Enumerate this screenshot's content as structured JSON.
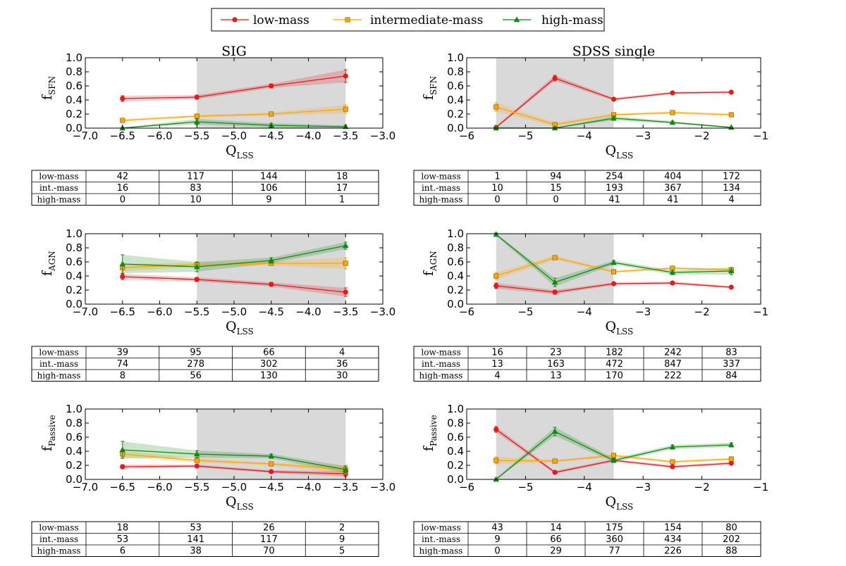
{
  "colors": {
    "low": "#e41a1c",
    "inter": "#ffa500",
    "high": "#118811",
    "shade": "#d9d9d9"
  },
  "legend": [
    {
      "key": "low",
      "label": "low-mass",
      "marker": "circle"
    },
    {
      "key": "inter",
      "label": "intermediate-mass",
      "marker": "square"
    },
    {
      "key": "high",
      "label": "high-mass",
      "marker": "triangle"
    }
  ],
  "chart_data": [
    {
      "type": "line",
      "id": "sig-sfn",
      "title": "SIG",
      "ylabel_main": "f",
      "ylabel_sub": "SFN",
      "xlabel_main": "Q",
      "xlabel_sub": "LSS",
      "xlim": [
        -7.0,
        -3.0
      ],
      "ylim": [
        0.0,
        1.0
      ],
      "xticks": [
        -7.0,
        -6.5,
        -6.0,
        -5.5,
        -5.0,
        -4.5,
        -4.0,
        -3.5,
        -3.0
      ],
      "xtick_labels": [
        "−7.0",
        "−6.5",
        "−6.0",
        "−5.5",
        "−5.0",
        "−4.5",
        "−4.0",
        "−3.5",
        "−3.0"
      ],
      "yticks": [
        0.0,
        0.2,
        0.4,
        0.6,
        0.8,
        1.0
      ],
      "ytick_labels": [
        "0.0",
        "0.2",
        "0.4",
        "0.6",
        "0.8",
        "1.0"
      ],
      "shade": [
        -5.5,
        -3.5
      ],
      "x": [
        -6.5,
        -5.5,
        -4.5,
        -3.5
      ],
      "series": [
        {
          "key": "low",
          "values": [
            0.42,
            0.44,
            0.6,
            0.74
          ],
          "err": [
            0.04,
            0.03,
            0.03,
            0.09
          ]
        },
        {
          "key": "inter",
          "values": [
            0.11,
            0.17,
            0.2,
            0.27
          ],
          "err": [
            0.02,
            0.02,
            0.02,
            0.06
          ]
        },
        {
          "key": "high",
          "values": [
            0.0,
            0.09,
            0.04,
            0.02
          ],
          "err": [
            0.01,
            0.04,
            0.03,
            0.02
          ]
        }
      ],
      "table": {
        "rows": [
          {
            "label": "low-mass",
            "values": [
              "42",
              "117",
              "144",
              "18"
            ]
          },
          {
            "label": "int.-mass",
            "values": [
              "16",
              "83",
              "106",
              "17"
            ]
          },
          {
            "label": "high-mass",
            "values": [
              "0",
              "10",
              "9",
              "1"
            ]
          }
        ]
      }
    },
    {
      "type": "line",
      "id": "sdss-sfn",
      "title": "SDSS single",
      "ylabel_main": "f",
      "ylabel_sub": "SFN",
      "xlabel_main": "Q",
      "xlabel_sub": "LSS",
      "xlim": [
        -6,
        -1
      ],
      "ylim": [
        0.0,
        1.0
      ],
      "xticks": [
        -6,
        -5,
        -4,
        -3,
        -2,
        -1
      ],
      "xtick_labels": [
        "−6",
        "−5",
        "−4",
        "−3",
        "−2",
        "−1"
      ],
      "yticks": [
        0.0,
        0.2,
        0.4,
        0.6,
        0.8,
        1.0
      ],
      "ytick_labels": [
        "0.0",
        "0.2",
        "0.4",
        "0.6",
        "0.8",
        "1.0"
      ],
      "shade": [
        -5.5,
        -3.5
      ],
      "x": [
        -5.5,
        -4.5,
        -3.5,
        -2.5,
        -1.5
      ],
      "series": [
        {
          "key": "low",
          "values": [
            0.01,
            0.71,
            0.41,
            0.5,
            0.51
          ],
          "err": [
            0.02,
            0.04,
            0.02,
            0.02,
            0.02
          ]
        },
        {
          "key": "inter",
          "values": [
            0.3,
            0.05,
            0.19,
            0.22,
            0.19
          ],
          "err": [
            0.06,
            0.03,
            0.02,
            0.02,
            0.02
          ]
        },
        {
          "key": "high",
          "values": [
            0.0,
            0.0,
            0.14,
            0.08,
            0.01
          ],
          "err": [
            0.02,
            0.01,
            0.03,
            0.02,
            0.01
          ]
        }
      ],
      "table": {
        "rows": [
          {
            "label": "low-mass",
            "values": [
              "1",
              "94",
              "254",
              "404",
              "172"
            ]
          },
          {
            "label": "int.-mass",
            "values": [
              "10",
              "15",
              "193",
              "367",
              "134"
            ]
          },
          {
            "label": "high-mass",
            "values": [
              "0",
              "0",
              "41",
              "41",
              "4"
            ]
          }
        ]
      }
    },
    {
      "type": "line",
      "id": "sig-agn",
      "title": "",
      "ylabel_main": "f",
      "ylabel_sub": "AGN",
      "xlabel_main": "Q",
      "xlabel_sub": "LSS",
      "xlim": [
        -7.0,
        -3.0
      ],
      "ylim": [
        0.0,
        1.0
      ],
      "xticks": [
        -7.0,
        -6.5,
        -6.0,
        -5.5,
        -5.0,
        -4.5,
        -4.0,
        -3.5,
        -3.0
      ],
      "xtick_labels": [
        "−7.0",
        "−6.5",
        "−6.0",
        "−5.5",
        "−5.0",
        "−4.5",
        "−4.0",
        "−3.5",
        "−3.0"
      ],
      "yticks": [
        0.0,
        0.2,
        0.4,
        0.6,
        0.8,
        1.0
      ],
      "ytick_labels": [
        "0.0",
        "0.2",
        "0.4",
        "0.6",
        "0.8",
        "1.0"
      ],
      "shade": [
        -5.5,
        -3.5
      ],
      "x": [
        -6.5,
        -5.5,
        -4.5,
        -3.5
      ],
      "series": [
        {
          "key": "low",
          "values": [
            0.39,
            0.35,
            0.28,
            0.17
          ],
          "err": [
            0.04,
            0.03,
            0.03,
            0.06
          ]
        },
        {
          "key": "inter",
          "values": [
            0.52,
            0.56,
            0.58,
            0.58
          ],
          "err": [
            0.05,
            0.03,
            0.03,
            0.08
          ]
        },
        {
          "key": "high",
          "values": [
            0.57,
            0.53,
            0.62,
            0.83
          ],
          "err": [
            0.13,
            0.07,
            0.04,
            0.05
          ]
        }
      ],
      "table": {
        "rows": [
          {
            "label": "low-mass",
            "values": [
              "39",
              "95",
              "66",
              "4"
            ]
          },
          {
            "label": "int.-mass",
            "values": [
              "74",
              "278",
              "302",
              "36"
            ]
          },
          {
            "label": "high-mass",
            "values": [
              "8",
              "56",
              "130",
              "30"
            ]
          }
        ]
      }
    },
    {
      "type": "line",
      "id": "sdss-agn",
      "title": "",
      "ylabel_main": "f",
      "ylabel_sub": "AGN",
      "xlabel_main": "Q",
      "xlabel_sub": "LSS",
      "xlim": [
        -6,
        -1
      ],
      "ylim": [
        0.0,
        1.0
      ],
      "xticks": [
        -6,
        -5,
        -4,
        -3,
        -2,
        -1
      ],
      "xtick_labels": [
        "−6",
        "−5",
        "−4",
        "−3",
        "−2",
        "−1"
      ],
      "yticks": [
        0.0,
        0.2,
        0.4,
        0.6,
        0.8,
        1.0
      ],
      "ytick_labels": [
        "0.0",
        "0.2",
        "0.4",
        "0.6",
        "0.8",
        "1.0"
      ],
      "shade": [
        -5.5,
        -3.5
      ],
      "x": [
        -5.5,
        -4.5,
        -3.5,
        -2.5,
        -1.5
      ],
      "series": [
        {
          "key": "low",
          "values": [
            0.26,
            0.17,
            0.29,
            0.3,
            0.24
          ],
          "err": [
            0.04,
            0.03,
            0.02,
            0.02,
            0.02
          ]
        },
        {
          "key": "inter",
          "values": [
            0.4,
            0.66,
            0.46,
            0.51,
            0.49
          ],
          "err": [
            0.05,
            0.03,
            0.02,
            0.02,
            0.02
          ]
        },
        {
          "key": "high",
          "values": [
            0.99,
            0.31,
            0.59,
            0.45,
            0.47
          ],
          "err": [
            0.02,
            0.06,
            0.03,
            0.03,
            0.05
          ]
        }
      ],
      "table": {
        "rows": [
          {
            "label": "low-mass",
            "values": [
              "16",
              "23",
              "182",
              "242",
              "83"
            ]
          },
          {
            "label": "int.-mass",
            "values": [
              "13",
              "163",
              "472",
              "847",
              "337"
            ]
          },
          {
            "label": "high-mass",
            "values": [
              "4",
              "13",
              "170",
              "222",
              "84"
            ]
          }
        ]
      }
    },
    {
      "type": "line",
      "id": "sig-passive",
      "title": "",
      "ylabel_main": "f",
      "ylabel_sub": "Passive",
      "xlabel_main": "Q",
      "xlabel_sub": "LSS",
      "xlim": [
        -7.0,
        -3.0
      ],
      "ylim": [
        0.0,
        1.0
      ],
      "xticks": [
        -7.0,
        -6.5,
        -6.0,
        -5.5,
        -5.0,
        -4.5,
        -4.0,
        -3.5,
        -3.0
      ],
      "xtick_labels": [
        "−7.0",
        "−6.5",
        "−6.0",
        "−5.5",
        "−5.0",
        "−4.5",
        "−4.0",
        "−3.5",
        "−3.0"
      ],
      "yticks": [
        0.0,
        0.2,
        0.4,
        0.6,
        0.8,
        1.0
      ],
      "ytick_labels": [
        "0.0",
        "0.2",
        "0.4",
        "0.6",
        "0.8",
        "1.0"
      ],
      "shade": [
        -5.5,
        -3.5
      ],
      "x": [
        -6.5,
        -5.5,
        -4.5,
        -3.5
      ],
      "series": [
        {
          "key": "low",
          "values": [
            0.18,
            0.19,
            0.11,
            0.08
          ],
          "err": [
            0.03,
            0.02,
            0.02,
            0.04
          ]
        },
        {
          "key": "inter",
          "values": [
            0.36,
            0.27,
            0.22,
            0.14
          ],
          "err": [
            0.05,
            0.03,
            0.02,
            0.06
          ]
        },
        {
          "key": "high",
          "values": [
            0.42,
            0.36,
            0.33,
            0.14
          ],
          "err": [
            0.12,
            0.05,
            0.03,
            0.05
          ]
        }
      ],
      "table": {
        "rows": [
          {
            "label": "low-mass",
            "values": [
              "18",
              "53",
              "26",
              "2"
            ]
          },
          {
            "label": "int.-mass",
            "values": [
              "53",
              "141",
              "117",
              "9"
            ]
          },
          {
            "label": "high-mass",
            "values": [
              "6",
              "38",
              "70",
              "5"
            ]
          }
        ]
      }
    },
    {
      "type": "line",
      "id": "sdss-passive",
      "title": "",
      "ylabel_main": "f",
      "ylabel_sub": "Passive",
      "xlabel_main": "Q",
      "xlabel_sub": "LSS",
      "xlim": [
        -6,
        -1
      ],
      "ylim": [
        0.0,
        1.0
      ],
      "xticks": [
        -6,
        -5,
        -4,
        -3,
        -2,
        -1
      ],
      "xtick_labels": [
        "−6",
        "−5",
        "−4",
        "−3",
        "−2",
        "−1"
      ],
      "yticks": [
        0.0,
        0.2,
        0.4,
        0.6,
        0.8,
        1.0
      ],
      "ytick_labels": [
        "0.0",
        "0.2",
        "0.4",
        "0.6",
        "0.8",
        "1.0"
      ],
      "shade": [
        -5.5,
        -3.5
      ],
      "x": [
        -5.5,
        -4.5,
        -3.5,
        -2.5,
        -1.5
      ],
      "series": [
        {
          "key": "low",
          "values": [
            0.71,
            0.1,
            0.27,
            0.18,
            0.23
          ],
          "err": [
            0.04,
            0.02,
            0.02,
            0.02,
            0.02
          ]
        },
        {
          "key": "inter",
          "values": [
            0.27,
            0.26,
            0.34,
            0.25,
            0.29
          ],
          "err": [
            0.05,
            0.02,
            0.02,
            0.02,
            0.02
          ]
        },
        {
          "key": "high",
          "values": [
            0.0,
            0.68,
            0.27,
            0.46,
            0.49
          ],
          "err": [
            0.02,
            0.06,
            0.03,
            0.03,
            0.03
          ]
        }
      ],
      "table": {
        "rows": [
          {
            "label": "low-mass",
            "values": [
              "43",
              "14",
              "175",
              "154",
              "80"
            ]
          },
          {
            "label": "int.-mass",
            "values": [
              "9",
              "66",
              "360",
              "434",
              "202"
            ]
          },
          {
            "label": "high-mass",
            "values": [
              "0",
              "29",
              "77",
              "226",
              "88"
            ]
          }
        ]
      }
    }
  ]
}
